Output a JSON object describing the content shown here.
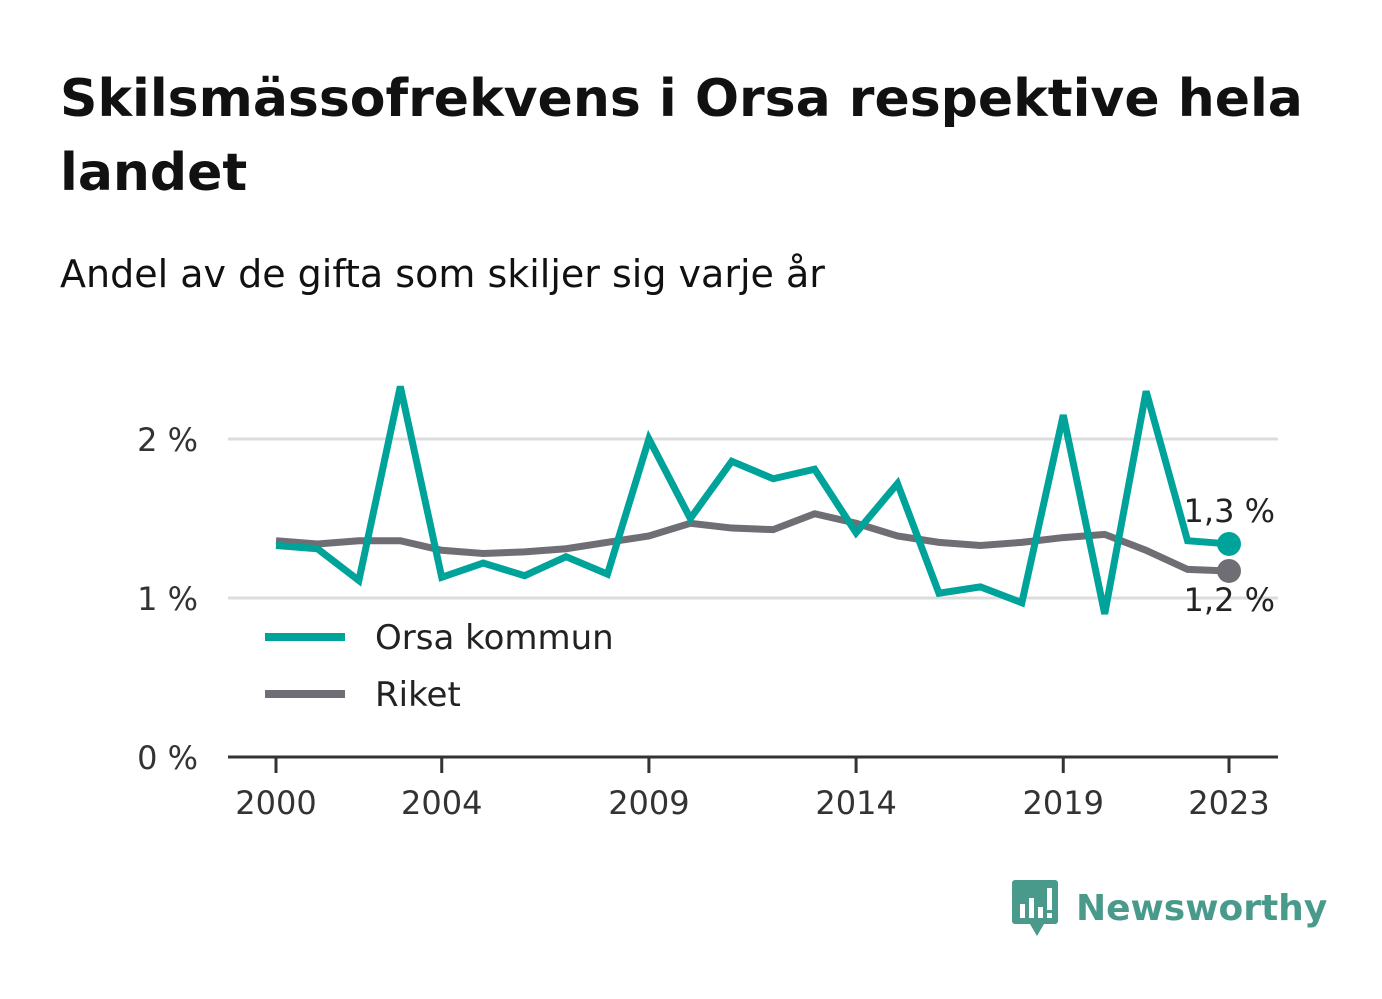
{
  "title": "Skilsmässofrekvens i Orsa respektive hela landet",
  "subtitle": "Andel av de gifta som skiljer sig varje år",
  "brand": {
    "name": "Newsworthy",
    "color": "#4a9a8c"
  },
  "chart_data": {
    "type": "line",
    "title": "Skilsmässofrekvens i Orsa respektive hela landet",
    "subtitle": "Andel av de gifta som skiljer sig varje år",
    "xlabel": "",
    "ylabel": "",
    "x": [
      2000,
      2001,
      2002,
      2003,
      2004,
      2005,
      2006,
      2007,
      2008,
      2009,
      2010,
      2011,
      2012,
      2013,
      2014,
      2015,
      2016,
      2017,
      2018,
      2019,
      2020,
      2021,
      2022,
      2023
    ],
    "x_ticks": [
      "2000",
      "2004",
      "2009",
      "2014",
      "2019",
      "2023"
    ],
    "y_ticks": [
      "0 %",
      "1 %",
      "2 %"
    ],
    "ylim": [
      0,
      2.5
    ],
    "grid": true,
    "legend_position": "bottom-left",
    "series": [
      {
        "name": "Orsa kommun",
        "color": "#00a39a",
        "values": [
          1.33,
          1.31,
          1.11,
          2.33,
          1.13,
          1.22,
          1.14,
          1.26,
          1.15,
          2.0,
          1.5,
          1.86,
          1.75,
          1.81,
          1.41,
          1.72,
          1.03,
          1.07,
          0.97,
          2.15,
          0.9,
          2.3,
          1.36,
          1.34
        ],
        "end_label": "1,3 %"
      },
      {
        "name": "Riket",
        "color": "#6e6e74",
        "values": [
          1.36,
          1.34,
          1.36,
          1.36,
          1.3,
          1.28,
          1.29,
          1.31,
          1.35,
          1.39,
          1.47,
          1.44,
          1.43,
          1.53,
          1.47,
          1.39,
          1.35,
          1.33,
          1.35,
          1.38,
          1.4,
          1.3,
          1.18,
          1.17
        ],
        "end_label": "1,2 %"
      }
    ]
  }
}
